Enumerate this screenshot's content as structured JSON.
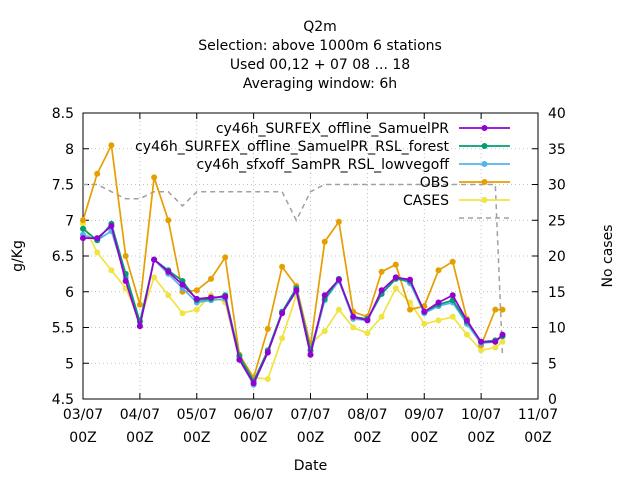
{
  "chart_data": {
    "type": "line",
    "title_lines": [
      "Q2m",
      "Selection: above 1000m      6 stations",
      "Used  00,12 + 07 08 ... 18",
      "Averaging window:  6h"
    ],
    "xlabel": "Date",
    "ylabel": "g/Kg",
    "y2label": "No cases",
    "xlim": [
      0,
      192
    ],
    "ylim": [
      4.5,
      8.5
    ],
    "y2lim": [
      0,
      40
    ],
    "xticks": [
      {
        "x": 0,
        "l1": "03/07",
        "l2": "00Z"
      },
      {
        "x": 24,
        "l1": "04/07",
        "l2": "00Z"
      },
      {
        "x": 48,
        "l1": "05/07",
        "l2": "00Z"
      },
      {
        "x": 72,
        "l1": "06/07",
        "l2": "00Z"
      },
      {
        "x": 96,
        "l1": "07/07",
        "l2": "00Z"
      },
      {
        "x": 120,
        "l1": "08/07",
        "l2": "00Z"
      },
      {
        "x": 144,
        "l1": "09/07",
        "l2": "00Z"
      },
      {
        "x": 168,
        "l1": "10/07",
        "l2": "00Z"
      },
      {
        "x": 192,
        "l1": "11/07",
        "l2": "00Z"
      }
    ],
    "yticks": [
      "4.5",
      "5",
      "5.5",
      "6",
      "6.5",
      "7",
      "7.5",
      "8",
      "8.5"
    ],
    "y2ticks": [
      "0",
      "5",
      "10",
      "15",
      "20",
      "25",
      "30",
      "35",
      "40"
    ],
    "grid": true,
    "legend_position": "top-right",
    "x": [
      0,
      6,
      12,
      18,
      24,
      30,
      36,
      42,
      48,
      54,
      60,
      66,
      72,
      78,
      84,
      90,
      96,
      102,
      108,
      114,
      120,
      126,
      132,
      138,
      144,
      150,
      156,
      162,
      168,
      174,
      177
    ],
    "series": [
      {
        "name": "cy46h_SURFEX_offline_SamuelPR",
        "color": "#9400d3",
        "marker": "circle",
        "values": [
          6.75,
          6.75,
          6.92,
          6.15,
          5.52,
          6.45,
          6.28,
          6.1,
          5.9,
          5.92,
          5.93,
          5.05,
          4.72,
          5.15,
          5.7,
          6.02,
          5.12,
          5.95,
          6.17,
          5.65,
          5.6,
          6.02,
          6.2,
          6.17,
          5.72,
          5.85,
          5.95,
          5.6,
          5.3,
          5.3,
          5.4
        ]
      },
      {
        "name": "cy46h_SURFEX_offline_SamuelPR_RSL_forest",
        "color": "#009e73",
        "marker": "circle",
        "values": [
          6.88,
          6.72,
          6.95,
          6.25,
          5.58,
          6.45,
          6.3,
          6.15,
          5.88,
          5.9,
          5.95,
          5.1,
          4.75,
          5.18,
          5.72,
          6.05,
          5.18,
          5.9,
          6.18,
          5.65,
          5.62,
          5.97,
          6.18,
          6.15,
          5.72,
          5.82,
          5.88,
          5.58,
          5.3,
          5.32,
          5.38
        ]
      },
      {
        "name": "cy46h_sfxoff_SamPR_RSL_lowvegoff",
        "color": "#56b4e9",
        "marker": "circle",
        "values": [
          6.8,
          6.72,
          6.85,
          6.2,
          5.52,
          6.45,
          6.25,
          6.05,
          5.85,
          5.88,
          5.9,
          5.05,
          4.7,
          5.15,
          5.7,
          6.0,
          5.12,
          5.88,
          6.15,
          5.62,
          5.6,
          5.97,
          6.2,
          6.12,
          5.7,
          5.8,
          5.85,
          5.55,
          5.28,
          5.3,
          5.38
        ]
      },
      {
        "name": "OBS",
        "color": "#e69f00",
        "marker": "circle",
        "values": [
          7.0,
          7.65,
          8.05,
          6.5,
          5.82,
          7.6,
          7.0,
          6.0,
          6.02,
          6.18,
          6.48,
          5.12,
          4.8,
          5.48,
          6.35,
          6.08,
          5.25,
          6.7,
          6.98,
          5.72,
          5.65,
          6.28,
          6.38,
          5.75,
          5.8,
          6.3,
          6.42,
          5.62,
          5.25,
          5.75,
          5.75
        ]
      },
      {
        "name": "CASES",
        "color": "#f0e442",
        "marker": "circle",
        "values": [
          6.95,
          6.55,
          6.3,
          6.05,
          5.6,
          6.2,
          5.95,
          5.7,
          5.75,
          5.95,
          5.85,
          5.05,
          4.8,
          4.78,
          5.35,
          5.95,
          5.27,
          5.45,
          5.75,
          5.5,
          5.42,
          5.65,
          6.05,
          5.85,
          5.55,
          5.6,
          5.65,
          5.4,
          5.18,
          5.22,
          5.3
        ]
      }
    ],
    "cases": {
      "name": "",
      "color": "#a0a0a0",
      "values": [
        30,
        30,
        29,
        28,
        28,
        29,
        29,
        27,
        29,
        29,
        29,
        29,
        29,
        29,
        29,
        25,
        29,
        30,
        30,
        30,
        30,
        30,
        30,
        30,
        30,
        30,
        30,
        30,
        30,
        30,
        6
      ]
    }
  }
}
